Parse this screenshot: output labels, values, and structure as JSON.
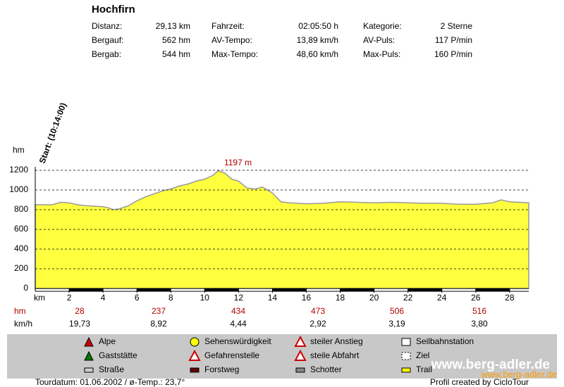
{
  "header": {
    "title": "Hochfirn",
    "stats": [
      [
        [
          "Distanz:",
          "29,13 km"
        ],
        [
          "Fahrzeit:",
          "02:05:50 h"
        ],
        [
          "Kategorie:",
          "2 Sterne"
        ]
      ],
      [
        [
          "Bergauf:",
          "562 hm"
        ],
        [
          "AV-Tempo:",
          "13,89 km/h"
        ],
        [
          "AV-Puls:",
          "117 P/min"
        ]
      ],
      [
        [
          "Bergab:",
          "544 hm"
        ],
        [
          "Max-Tempo:",
          "48,60 km/h"
        ],
        [
          "Max-Puls:",
          "160 P/min"
        ]
      ]
    ]
  },
  "chart_data": {
    "type": "area",
    "x_label": "km",
    "y_label": "hm",
    "start_label": "Start: (10:14:00)",
    "peak_label": "1197 m",
    "color": "#ffff40",
    "x": [
      0,
      1,
      1.5,
      2,
      2.5,
      3,
      3.5,
      4,
      4.3,
      4.6,
      5,
      5.5,
      6,
      6.5,
      7,
      7.5,
      8,
      8.5,
      9,
      9.5,
      10,
      10.5,
      10.8,
      11.2,
      11.6,
      12,
      12.5,
      13,
      13.4,
      14,
      14.5,
      15,
      16,
      17,
      18,
      19,
      20,
      21,
      22,
      23,
      24,
      25,
      26,
      27,
      27.5,
      28,
      29.13
    ],
    "values": [
      850,
      850,
      875,
      870,
      850,
      840,
      835,
      830,
      820,
      800,
      810,
      840,
      890,
      930,
      960,
      990,
      1010,
      1040,
      1060,
      1090,
      1110,
      1150,
      1197,
      1170,
      1110,
      1090,
      1020,
      1010,
      1030,
      970,
      880,
      870,
      860,
      865,
      880,
      875,
      870,
      875,
      870,
      865,
      865,
      855,
      855,
      870,
      900,
      880,
      870
    ],
    "xlim": [
      0,
      29.13
    ],
    "xticks": [
      2,
      4,
      6,
      8,
      10,
      12,
      14,
      16,
      18,
      20,
      22,
      24,
      26,
      28
    ],
    "ylim": [
      0,
      1200
    ],
    "yticks": [
      0,
      200,
      400,
      600,
      800,
      1000,
      1200
    ],
    "grid": true
  },
  "rows": {
    "hm": {
      "label": "hm",
      "values": [
        "28",
        "237",
        "434",
        "473",
        "506",
        "516"
      ]
    },
    "speed": {
      "label": "km/h",
      "values": [
        "19,73",
        "8,92",
        "4,44",
        "2,92",
        "3,19",
        "3,80"
      ]
    }
  },
  "legend": [
    "Alpe",
    "Gaststätte",
    "Straße",
    "Sehenswürdigkeit",
    "Gefahrenstelle",
    "Forstweg",
    "steiler Anstieg",
    "steile Abfahrt",
    "Schotter",
    "Seilbahnstation",
    "Ziel",
    "Trail"
  ],
  "footer": {
    "left": "Tourdatum: 01.06.2002  /  ø-Temp.: 23,7°",
    "right": "Profil created by CicloTour",
    "watermark": "www.berg-adler.de"
  }
}
